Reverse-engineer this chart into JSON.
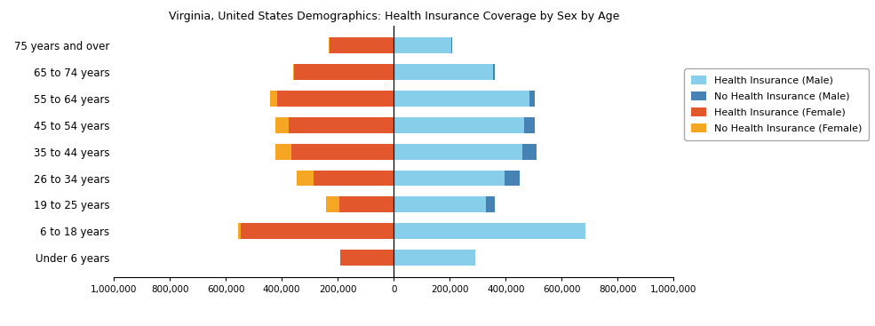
{
  "title": "Virginia, United States Demographics: Health Insurance Coverage by Sex by Age",
  "age_groups": [
    "Under 6 years",
    "6 to 18 years",
    "19 to 25 years",
    "26 to 34 years",
    "35 to 44 years",
    "45 to 54 years",
    "55 to 64 years",
    "65 to 74 years",
    "75 years and over"
  ],
  "health_insurance_male": [
    290000,
    685000,
    330000,
    395000,
    460000,
    465000,
    485000,
    355000,
    205000
  ],
  "no_health_insurance_male": [
    0,
    0,
    30000,
    55000,
    50000,
    40000,
    20000,
    5000,
    3000
  ],
  "health_insurance_female": [
    190000,
    545000,
    195000,
    285000,
    365000,
    375000,
    415000,
    355000,
    230000
  ],
  "no_health_insurance_female": [
    0,
    12000,
    48000,
    62000,
    58000,
    48000,
    28000,
    4000,
    3000
  ],
  "color_health_male": "#87CEEB",
  "color_no_health_male": "#4682B4",
  "color_health_female": "#E2572B",
  "color_no_health_female": "#F5A623",
  "xlim": 1000000,
  "xtick_step": 200000,
  "xtick_labels": [
    "1,000,000",
    "800,000",
    "600,000",
    "400,000",
    "200,000",
    "0",
    "200,000",
    "400,000",
    "600,000",
    "800,000",
    "1,000,000"
  ]
}
